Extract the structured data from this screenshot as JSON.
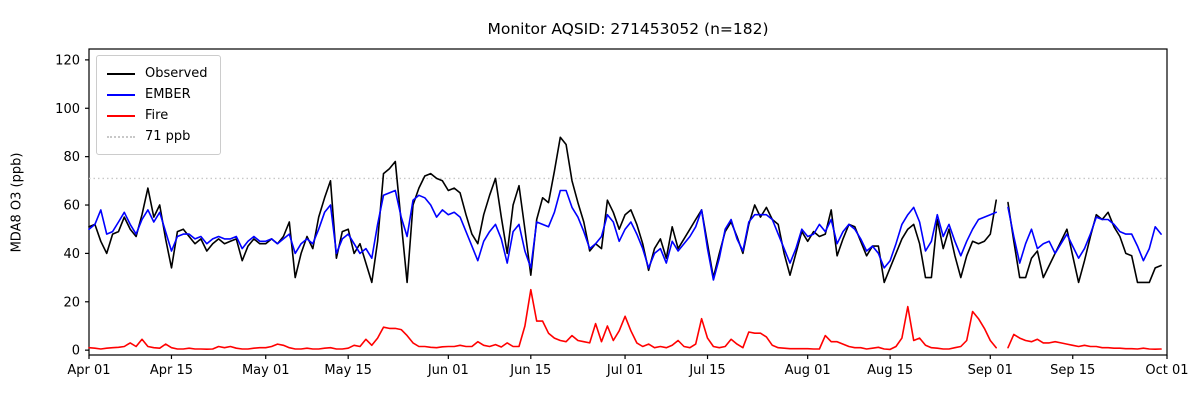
{
  "title": "Monitor AQSID: 271453052 (n=182)",
  "chart_data": {
    "type": "line",
    "title": "Monitor AQSID: 271453052 (n=182)",
    "xlabel": "",
    "ylabel": "MDA8 O3 (ppb)",
    "x_start_date": "Apr 01",
    "x_end_date": "Oct 01",
    "total_days": 183,
    "x_tick_days": [
      0,
      14,
      30,
      44,
      61,
      75,
      91,
      105,
      122,
      136,
      153,
      167,
      183
    ],
    "x_tick_labels": [
      "Apr 01",
      "Apr 15",
      "May 01",
      "May 15",
      "Jun 01",
      "Jun 15",
      "Jul 01",
      "Jul 15",
      "Aug 01",
      "Aug 15",
      "Sep 01",
      "Sep 15",
      "Oct 01"
    ],
    "y_ticks": [
      0,
      20,
      40,
      60,
      80,
      100,
      120
    ],
    "y_tick_labels": [
      "0",
      "20",
      "40",
      "60",
      "80",
      "100",
      "120"
    ],
    "ylim": [
      -2,
      124.5
    ],
    "grid": false,
    "legend_position": "upper-left",
    "n_points": 182,
    "missing_day_note": "one day (Sep 03) has no data in all series",
    "reference_line": {
      "label": "71 ppb",
      "value": 71,
      "color": "#c8c8c8",
      "style": "dotted"
    },
    "series": [
      {
        "name": "Observed",
        "color": "#000000",
        "values": [
          51,
          52,
          45,
          40,
          48,
          49,
          55,
          50,
          47,
          56,
          67,
          55,
          60,
          46,
          34,
          49,
          50,
          47,
          44,
          46,
          41,
          44,
          46,
          44,
          45,
          46,
          37,
          43,
          46,
          44,
          44,
          46,
          44,
          47,
          53,
          30,
          40,
          47,
          42,
          55,
          63,
          70,
          38,
          49,
          50,
          40,
          44,
          36,
          28,
          45,
          73,
          75,
          78,
          53,
          28,
          60,
          67,
          72,
          73,
          71,
          70,
          66,
          67,
          65,
          56,
          48,
          44,
          56,
          64,
          71,
          55,
          40,
          60,
          68,
          50,
          31,
          54,
          63,
          61,
          74,
          88,
          85,
          70,
          61,
          53,
          41,
          44,
          42,
          62,
          57,
          50,
          56,
          58,
          52,
          44,
          33,
          42,
          46,
          38,
          51,
          42,
          46,
          50,
          54,
          58,
          44,
          30,
          40,
          49,
          53,
          47,
          40,
          52,
          60,
          55,
          59,
          54,
          52,
          40,
          31,
          40,
          49,
          45,
          49,
          47,
          48,
          58,
          39,
          46,
          52,
          51,
          45,
          39,
          43,
          43,
          28,
          34,
          40,
          46,
          50,
          52,
          44,
          30,
          30,
          54,
          42,
          50,
          39,
          30,
          39,
          45,
          44,
          45,
          48,
          62,
          null,
          61,
          45,
          30,
          30,
          38,
          41,
          30,
          35,
          40,
          45,
          50,
          39,
          28,
          37,
          47,
          56,
          54,
          57,
          51,
          47,
          40,
          39,
          28,
          28,
          28,
          34,
          35
        ]
      },
      {
        "name": "EMBER",
        "color": "#0000ff",
        "values": [
          50,
          52,
          58,
          48,
          49,
          53,
          57,
          52,
          48,
          54,
          58,
          53,
          57,
          49,
          41,
          47,
          48,
          48,
          46,
          47,
          44,
          46,
          47,
          46,
          46,
          47,
          42,
          45,
          47,
          45,
          45,
          46,
          44,
          46,
          48,
          40,
          44,
          46,
          44,
          50,
          57,
          60,
          40,
          46,
          48,
          44,
          40,
          42,
          38,
          52,
          64,
          65,
          66,
          55,
          47,
          62,
          64,
          63,
          60,
          55,
          58,
          56,
          57,
          55,
          49,
          43,
          37,
          45,
          49,
          52,
          46,
          36,
          49,
          52,
          41,
          34,
          53,
          52,
          51,
          57,
          66,
          66,
          59,
          55,
          49,
          42,
          44,
          47,
          56,
          53,
          45,
          50,
          53,
          48,
          42,
          34,
          40,
          42,
          36,
          45,
          41,
          44,
          47,
          51,
          58,
          42,
          29,
          38,
          50,
          54,
          46,
          41,
          53,
          56,
          56,
          56,
          54,
          48,
          42,
          36,
          42,
          50,
          47,
          48,
          52,
          49,
          54,
          44,
          49,
          52,
          50,
          46,
          41,
          43,
          40,
          34,
          37,
          44,
          52,
          56,
          59,
          53,
          41,
          45,
          56,
          47,
          52,
          45,
          39,
          45,
          50,
          54,
          55,
          56,
          57,
          null,
          59,
          47,
          36,
          44,
          50,
          42,
          44,
          45,
          40,
          44,
          48,
          43,
          38,
          42,
          48,
          55,
          54,
          54,
          52,
          49,
          48,
          48,
          43,
          37,
          42,
          51,
          48
        ]
      },
      {
        "name": "Fire",
        "color": "#ff0000",
        "values": [
          1,
          0.8,
          0.5,
          0.8,
          1,
          1.2,
          1.5,
          3,
          1.5,
          4.5,
          1.5,
          1,
          0.8,
          2.5,
          1,
          0.5,
          0.5,
          0.8,
          0.5,
          0.5,
          0.4,
          0.5,
          1.5,
          1,
          1.5,
          0.8,
          0.5,
          0.5,
          0.8,
          1,
          1,
          1.5,
          2.5,
          2,
          1,
          0.5,
          0.5,
          0.8,
          0.5,
          0.5,
          0.8,
          1,
          0.5,
          0.5,
          0.8,
          2,
          1.5,
          4.5,
          2,
          5,
          9.5,
          9,
          9,
          8.5,
          6,
          3,
          1.5,
          1.5,
          1.2,
          1,
          1.4,
          1.5,
          1.5,
          2,
          1.5,
          1.5,
          3.5,
          2,
          1.5,
          2.3,
          1.3,
          3,
          1.5,
          1.5,
          10,
          25,
          12,
          12,
          7,
          5,
          4,
          3.5,
          6,
          4,
          3.5,
          3,
          11,
          3.5,
          10,
          4,
          8,
          14,
          8,
          3,
          1.5,
          2.5,
          1,
          1.5,
          1,
          2,
          4,
          1.5,
          1,
          2.5,
          13,
          5,
          1.5,
          1,
          1.5,
          4.5,
          2.5,
          1,
          7.5,
          7,
          7,
          5.5,
          2,
          1,
          0.8,
          0.6,
          0.6,
          0.6,
          0.6,
          0.5,
          0.5,
          6,
          3.5,
          3.5,
          2.5,
          1.5,
          1,
          1,
          0.5,
          0.8,
          1.2,
          0.5,
          0.3,
          1.5,
          5,
          18,
          4,
          5,
          2,
          1,
          0.8,
          0.5,
          0.5,
          1,
          1.5,
          4,
          16,
          13,
          9,
          4,
          1,
          null,
          1,
          6.5,
          5,
          4,
          3.5,
          4.5,
          3,
          3,
          3.5,
          3,
          2.5,
          2,
          1.5,
          2,
          1.5,
          1.5,
          1,
          1,
          0.8,
          0.8,
          0.6,
          0.6,
          0.5,
          0.8,
          0.5,
          0.4,
          0.5
        ]
      }
    ],
    "legend_entries": [
      "Observed",
      "EMBER",
      "Fire",
      "71 ppb"
    ]
  }
}
